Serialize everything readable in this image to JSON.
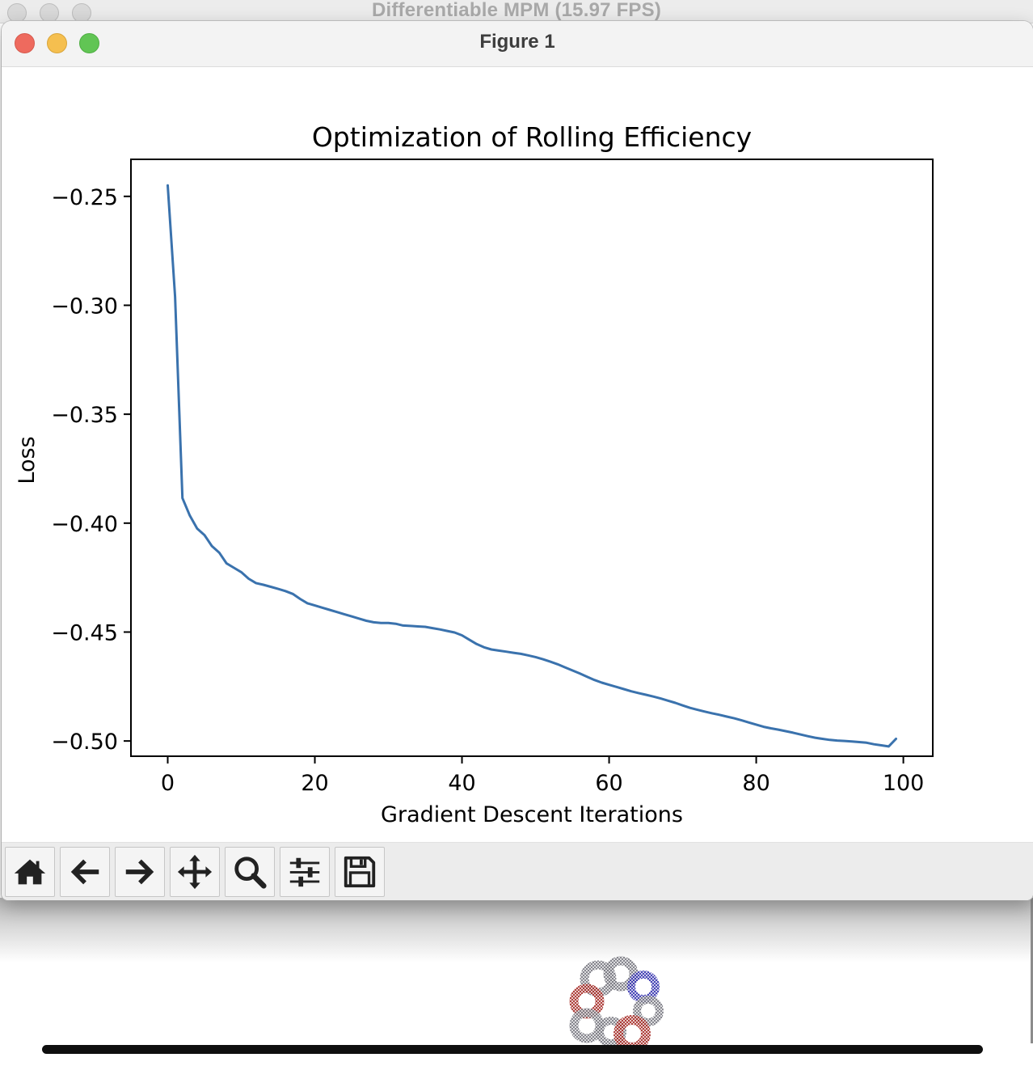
{
  "background_window": {
    "title": "Differentiable MPM (15.97 FPS)"
  },
  "figure_window": {
    "title": "Figure 1"
  },
  "toolbar": {
    "buttons": [
      {
        "name": "home-button",
        "icon": "home-icon"
      },
      {
        "name": "back-button",
        "icon": "arrow-left-icon"
      },
      {
        "name": "forward-button",
        "icon": "arrow-right-icon"
      },
      {
        "name": "pan-button",
        "icon": "move-icon"
      },
      {
        "name": "zoom-button",
        "icon": "magnifier-icon"
      },
      {
        "name": "configure-subplots-button",
        "icon": "sliders-icon"
      },
      {
        "name": "save-button",
        "icon": "floppy-disk-icon"
      }
    ]
  },
  "colors": {
    "line": "#3a72ad",
    "close": "#ee6a5e",
    "minimize": "#f5bf4f",
    "zoom": "#61c554"
  },
  "chart_data": {
    "type": "line",
    "title": "Optimization of Rolling Efficiency",
    "xlabel": "Gradient Descent Iterations",
    "ylabel": "Loss",
    "xlim": [
      -5,
      104
    ],
    "ylim": [
      -0.507,
      -0.233
    ],
    "xticks": [
      0,
      20,
      40,
      60,
      80,
      100
    ],
    "xtick_labels": [
      "0",
      "20",
      "40",
      "60",
      "80",
      "100"
    ],
    "yticks": [
      -0.25,
      -0.3,
      -0.35,
      -0.4,
      -0.45,
      -0.5
    ],
    "ytick_labels": [
      "−0.25",
      "−0.30",
      "−0.35",
      "−0.40",
      "−0.45",
      "−0.50"
    ],
    "grid": false,
    "series": [
      {
        "x": [
          0,
          1,
          2,
          3,
          4,
          5,
          6,
          7,
          8,
          9,
          10,
          11,
          12,
          13,
          14,
          15,
          16,
          17,
          18,
          19,
          20,
          21,
          22,
          23,
          24,
          25,
          26,
          27,
          28,
          29,
          30,
          31,
          32,
          33,
          34,
          35,
          36,
          37,
          38,
          39,
          40,
          41,
          42,
          43,
          44,
          45,
          46,
          47,
          48,
          49,
          50,
          51,
          52,
          53,
          54,
          55,
          56,
          57,
          58,
          59,
          60,
          61,
          62,
          63,
          64,
          65,
          66,
          67,
          68,
          69,
          70,
          71,
          72,
          73,
          74,
          75,
          76,
          77,
          78,
          79,
          80,
          81,
          82,
          83,
          84,
          85,
          86,
          87,
          88,
          89,
          90,
          91,
          92,
          93,
          94,
          95,
          96,
          97,
          98,
          99
        ],
        "y": [
          -0.245,
          -0.296,
          -0.3885,
          -0.3965,
          -0.4025,
          -0.4055,
          -0.4105,
          -0.4135,
          -0.4185,
          -0.4205,
          -0.4225,
          -0.4255,
          -0.4275,
          -0.4283,
          -0.4292,
          -0.4302,
          -0.4312,
          -0.4325,
          -0.4348,
          -0.4368,
          -0.4378,
          -0.4388,
          -0.4398,
          -0.4408,
          -0.4418,
          -0.4428,
          -0.4438,
          -0.4448,
          -0.4455,
          -0.4458,
          -0.4458,
          -0.4462,
          -0.447,
          -0.4472,
          -0.4474,
          -0.4476,
          -0.4482,
          -0.4488,
          -0.4495,
          -0.4502,
          -0.4515,
          -0.4535,
          -0.4555,
          -0.457,
          -0.458,
          -0.4585,
          -0.459,
          -0.4595,
          -0.46,
          -0.4607,
          -0.4615,
          -0.4625,
          -0.4636,
          -0.4648,
          -0.4662,
          -0.4676,
          -0.469,
          -0.4705,
          -0.472,
          -0.4732,
          -0.4742,
          -0.4752,
          -0.4762,
          -0.4772,
          -0.478,
          -0.4788,
          -0.4796,
          -0.4805,
          -0.4815,
          -0.4825,
          -0.4837,
          -0.4848,
          -0.4857,
          -0.4865,
          -0.4873,
          -0.488,
          -0.4888,
          -0.4896,
          -0.4905,
          -0.4915,
          -0.4925,
          -0.4935,
          -0.4942,
          -0.4948,
          -0.4955,
          -0.4962,
          -0.497,
          -0.4978,
          -0.4985,
          -0.499,
          -0.4995,
          -0.4998,
          -0.5,
          -0.5002,
          -0.5005,
          -0.5008,
          -0.5015,
          -0.502,
          -0.5025,
          -0.499
        ]
      }
    ]
  }
}
